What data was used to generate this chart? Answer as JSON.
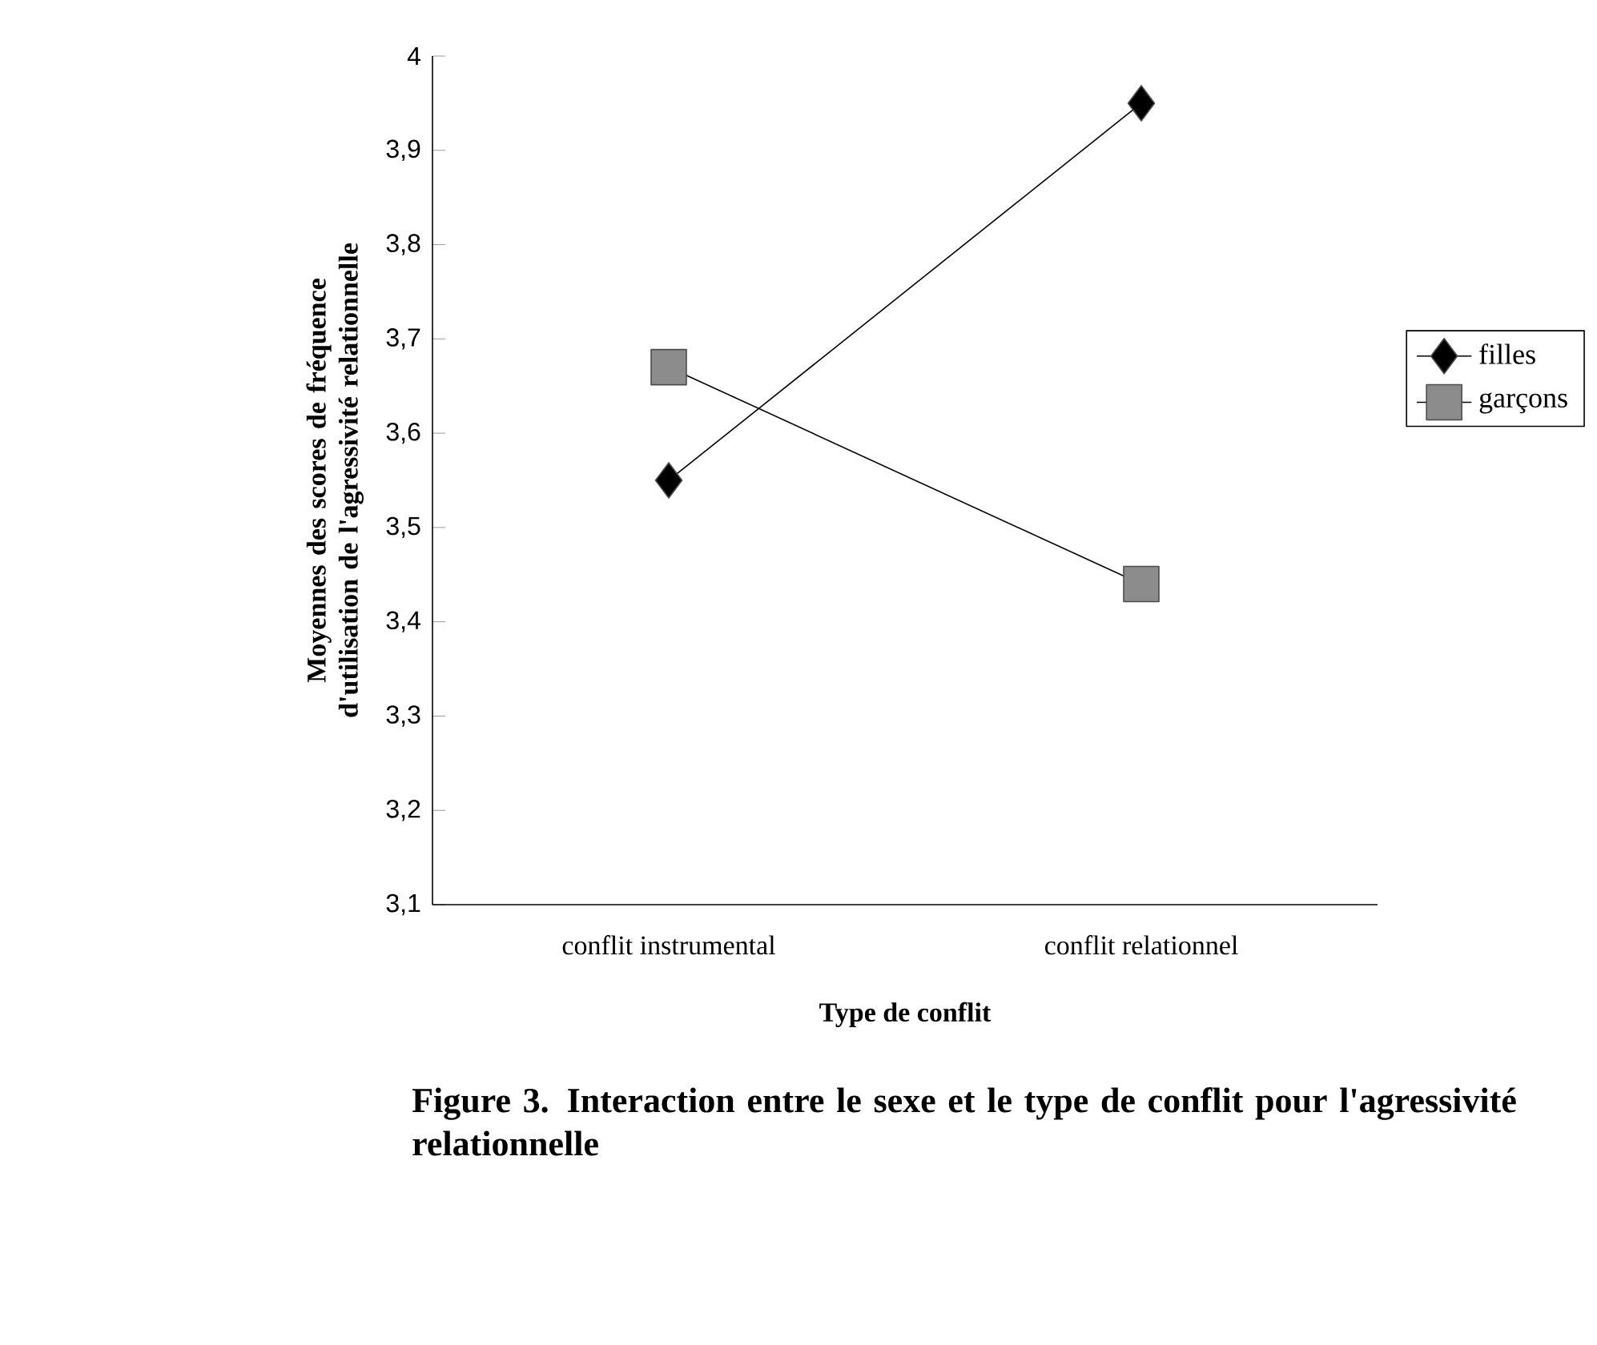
{
  "chart_data": {
    "type": "line",
    "xlabel": "Type de conflit",
    "ylabel": "Moyennes des scores de fréquence d'utilisation de l'agressivité relationnelle",
    "categories": [
      "conflit instrumental",
      "conflit relationnel"
    ],
    "series": [
      {
        "name": "filles",
        "color": "#000000",
        "marker": "diamond",
        "values": [
          3.55,
          3.95
        ]
      },
      {
        "name": "garçons",
        "color": "#8c8c8c",
        "marker": "square",
        "values": [
          3.67,
          3.44
        ]
      }
    ],
    "ylim": [
      3.1,
      4
    ],
    "yticks": [
      {
        "value": 3.1,
        "label": "3,1"
      },
      {
        "value": 3.2,
        "label": "3,2"
      },
      {
        "value": 3.3,
        "label": "3,3"
      },
      {
        "value": 3.4,
        "label": "3,4"
      },
      {
        "value": 3.5,
        "label": "3,5"
      },
      {
        "value": 3.6,
        "label": "3,6"
      },
      {
        "value": 3.7,
        "label": "3,7"
      },
      {
        "value": 3.8,
        "label": "3,8"
      },
      {
        "value": 3.9,
        "label": "3,9"
      },
      {
        "value": 4,
        "label": "4"
      }
    ],
    "grid": false,
    "legend": "right",
    "line_style": "solid",
    "annotations": [
      "Figure 3. Interaction entre le sexe et le type de conflit pour l'agressivité relationnelle"
    ]
  }
}
